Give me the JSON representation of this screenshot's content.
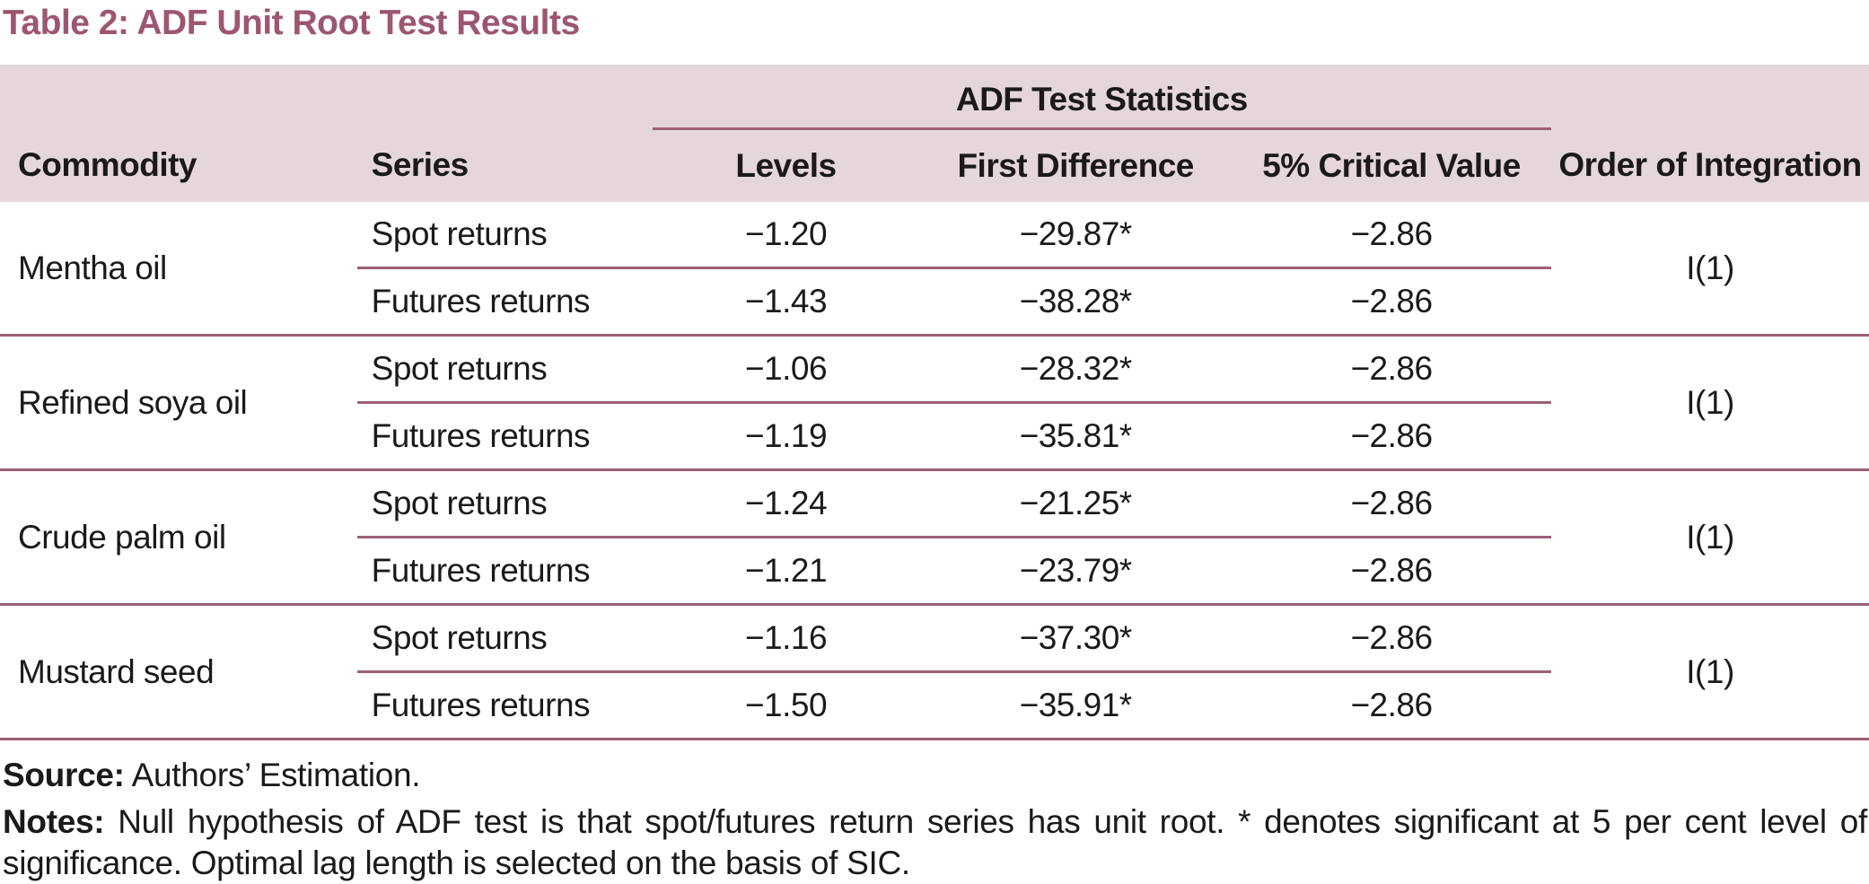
{
  "title": "Table 2: ADF Unit Root Test Results",
  "colors": {
    "title_accent": "#9d5671",
    "rule_accent": "#9d6078",
    "header_background": "#e5d6de",
    "body_text": "#1c191b"
  },
  "table": {
    "spanner_heading": "ADF Test Statistics",
    "columns": [
      "Commodity",
      "Series",
      "Levels",
      "First Difference",
      "5% Critical Value",
      "Order of Integration"
    ],
    "groups": [
      {
        "commodity": "Mentha oil",
        "order": "I(1)",
        "rows": [
          {
            "series": "Spot returns",
            "levels": "−1.20",
            "first_difference": "−29.87*",
            "critical": "−2.86"
          },
          {
            "series": "Futures returns",
            "levels": "−1.43",
            "first_difference": "−38.28*",
            "critical": "−2.86"
          }
        ]
      },
      {
        "commodity": "Refined soya oil",
        "order": "I(1)",
        "rows": [
          {
            "series": "Spot returns",
            "levels": "−1.06",
            "first_difference": "−28.32*",
            "critical": "−2.86"
          },
          {
            "series": "Futures returns",
            "levels": "−1.19",
            "first_difference": "−35.81*",
            "critical": "−2.86"
          }
        ]
      },
      {
        "commodity": "Crude palm oil",
        "order": "I(1)",
        "rows": [
          {
            "series": "Spot returns",
            "levels": "−1.24",
            "first_difference": "−21.25*",
            "critical": "−2.86"
          },
          {
            "series": "Futures returns",
            "levels": "−1.21",
            "first_difference": "−23.79*",
            "critical": "−2.86"
          }
        ]
      },
      {
        "commodity": "Mustard seed",
        "order": "I(1)",
        "rows": [
          {
            "series": "Spot returns",
            "levels": "−1.16",
            "first_difference": "−37.30*",
            "critical": "−2.86"
          },
          {
            "series": "Futures returns",
            "levels": "−1.50",
            "first_difference": "−35.91*",
            "critical": "−2.86"
          }
        ]
      }
    ]
  },
  "footer": {
    "source_label": "Source:",
    "source_text": "Authors’ Estimation.",
    "notes_label": "Notes:",
    "notes_text": "Null hypothesis of ADF test is that spot/futures return series has unit root. * denotes significant at 5 per cent level of significance. Optimal lag length is selected on the basis of SIC."
  }
}
